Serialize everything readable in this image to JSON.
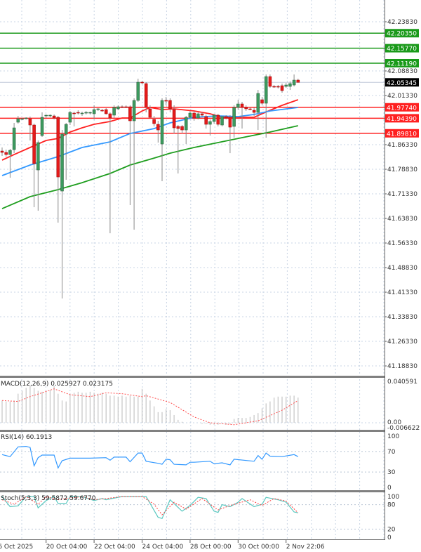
{
  "chart_data": {
    "type": "candlestick",
    "price_axis": {
      "ticks": [
        "42.23830",
        "42.08830",
        "42.01330",
        "41.86330",
        "41.78830",
        "41.71330",
        "41.63830",
        "41.56330",
        "41.48830",
        "41.41330",
        "41.33830",
        "41.26330",
        "41.18830"
      ],
      "range": [
        41.1683,
        42.3047
      ]
    },
    "time_axis": {
      "ticks": [
        "6 Oct 2025",
        "20 Oct 04:00",
        "22 Oct 04:00",
        "24 Oct 04:00",
        "28 Oct 00:00",
        "30 Oct 00:00",
        "2 Nov 22:06"
      ],
      "tick_bars": [
        -1,
        11,
        23,
        35,
        47,
        59,
        71
      ]
    },
    "grid": true,
    "colors": {
      "bull": "#3c9a5f",
      "bear": "#e41a1a",
      "wick": "#8a8a8a",
      "ma_fast": "#ff2222",
      "ma_mid": "#3399ff",
      "ma_slow": "#1f9e1f",
      "level_resistance": "#1a9a1a",
      "level_support": "#ff2020",
      "last_price": "#000000"
    },
    "candles": [
      [
        41.844,
        41.8547,
        41.829,
        41.8397
      ],
      [
        41.8397,
        41.8482,
        41.8268,
        41.8332
      ],
      [
        41.8332,
        41.8504,
        41.7625,
        41.8461
      ],
      [
        41.8482,
        41.9297,
        41.8375,
        41.9147
      ],
      [
        41.9318,
        41.9511,
        41.9275,
        41.9425
      ],
      [
        41.9404,
        41.9447,
        41.9383,
        41.9425
      ],
      [
        41.9425,
        41.9468,
        41.9404,
        41.9447
      ],
      [
        41.9425,
        41.949,
        41.8761,
        41.9233
      ],
      [
        41.9233,
        41.9275,
        41.6725,
        41.8054
      ],
      [
        41.7861,
        41.8761,
        41.6618,
        41.8697
      ],
      [
        41.8911,
        41.9618,
        41.8868,
        41.9468
      ],
      [
        41.9511,
        41.9554,
        41.9447,
        41.9533
      ],
      [
        41.9511,
        41.9554,
        41.9468,
        41.9533
      ],
      [
        41.9511,
        41.9554,
        41.9404,
        41.9447
      ],
      [
        41.9468,
        41.9511,
        41.6254,
        41.7647
      ],
      [
        41.7218,
        41.9082,
        41.394,
        41.8954
      ],
      [
        41.8954,
        41.9297,
        41.7561,
        41.9254
      ],
      [
        41.9318,
        41.9661,
        41.9233,
        41.9618
      ],
      [
        41.9597,
        41.964,
        41.919,
        41.9576
      ],
      [
        41.9618,
        41.9683,
        41.9554,
        41.9597
      ],
      [
        41.9576,
        41.964,
        41.9511,
        41.9597
      ],
      [
        41.9597,
        41.9661,
        41.9554,
        41.9618
      ],
      [
        41.9597,
        41.964,
        41.9554,
        41.9618
      ],
      [
        41.9576,
        41.9833,
        41.9404,
        41.9704
      ],
      [
        41.9704,
        41.9747,
        41.9661,
        41.9726
      ],
      [
        41.9683,
        41.9726,
        41.964,
        41.9661
      ],
      [
        41.9704,
        41.9747,
        41.9554,
        41.9576
      ],
      [
        41.9576,
        41.9618,
        41.5932,
        41.9447
      ],
      [
        41.9533,
        41.9833,
        41.9447,
        41.9768
      ],
      [
        41.9726,
        41.9833,
        41.9683,
        41.979
      ],
      [
        41.979,
        41.9833,
        41.9747,
        41.9768
      ],
      [
        41.979,
        41.9833,
        41.9747,
        41.9768
      ],
      [
        41.979,
        41.9833,
        41.679,
        41.9361
      ],
      [
        41.9361,
        42.0047,
        41.604,
        41.9983
      ],
      [
        41.9983,
        42.0647,
        41.994,
        42.054
      ],
      [
        42.054,
        42.0583,
        42.0475,
        42.0518
      ],
      [
        42.0497,
        42.054,
        41.9618,
        41.9768
      ],
      [
        41.9726,
        41.9833,
        41.9447,
        41.9468
      ],
      [
        41.9404,
        41.9511,
        41.919,
        41.9275
      ],
      [
        41.9254,
        41.9361,
        41.8697,
        41.9082
      ],
      [
        41.8654,
        42.0047,
        41.7518,
        41.9983
      ],
      [
        41.9983,
        42.009,
        41.9833,
        41.9961
      ],
      [
        41.9983,
        42.0047,
        41.9618,
        41.9726
      ],
      [
        41.9704,
        41.9833,
        41.8975,
        41.9147
      ],
      [
        41.919,
        41.9233,
        41.7754,
        41.9125
      ],
      [
        41.919,
        41.9233,
        41.8975,
        41.9082
      ],
      [
        41.9082,
        41.9511,
        41.8654,
        41.9468
      ],
      [
        41.9468,
        41.9661,
        41.9404,
        41.9597
      ],
      [
        41.9597,
        41.9661,
        41.9361,
        41.9447
      ],
      [
        41.9447,
        41.9618,
        41.9404,
        41.9576
      ],
      [
        41.9576,
        41.9618,
        41.949,
        41.9533
      ],
      [
        41.949,
        41.9554,
        41.9125,
        41.9254
      ],
      [
        41.9254,
        41.9404,
        41.8911,
        41.934
      ],
      [
        41.934,
        41.9576,
        41.9275,
        41.9533
      ],
      [
        41.9533,
        41.9576,
        41.919,
        41.9254
      ],
      [
        41.9233,
        41.9511,
        41.919,
        41.949
      ],
      [
        41.949,
        41.9533,
        41.9404,
        41.9447
      ],
      [
        41.9468,
        41.9533,
        41.8375,
        41.9168
      ],
      [
        41.919,
        41.9833,
        41.8847,
        41.9768
      ],
      [
        41.9768,
        42.0004,
        41.9704,
        41.9876
      ],
      [
        41.9876,
        41.994,
        41.9125,
        41.9768
      ],
      [
        41.9768,
        41.9833,
        41.9661,
        41.9726
      ],
      [
        41.9726,
        41.9768,
        41.9683,
        41.9704
      ],
      [
        41.9683,
        41.9768,
        41.9511,
        41.9618
      ],
      [
        41.9618,
        42.0304,
        41.9082,
        42.0197
      ],
      [
        42.0004,
        42.009,
        41.9833,
        41.9897
      ],
      [
        41.9897,
        42.0775,
        41.8847,
        42.0711
      ],
      [
        42.0711,
        42.0775,
        42.0368,
        42.0411
      ],
      [
        42.0411,
        42.0454,
        42.0368,
        42.039
      ],
      [
        42.0411,
        42.0454,
        42.0347,
        42.039
      ],
      [
        42.0433,
        42.0497,
        42.0218,
        42.0283
      ],
      [
        42.0411,
        42.0518,
        42.0368,
        42.0454
      ],
      [
        42.0411,
        42.0561,
        42.0304,
        42.0497
      ],
      [
        42.0454,
        42.0775,
        42.0411,
        42.0604
      ],
      [
        42.0604,
        42.0647,
        42.054,
        42.05345
      ]
    ],
    "moving_averages": [
      {
        "key": "ma_fast",
        "points": [
          [
            0,
            41.8161
          ],
          [
            3,
            41.8332
          ],
          [
            7,
            41.8547
          ],
          [
            11,
            41.8761
          ],
          [
            14,
            41.8825
          ],
          [
            17,
            41.9018
          ],
          [
            20,
            41.9147
          ],
          [
            23,
            41.9254
          ],
          [
            27,
            41.934
          ],
          [
            30,
            41.9447
          ],
          [
            32,
            41.9447
          ],
          [
            35,
            41.9661
          ],
          [
            37,
            41.9768
          ],
          [
            40,
            41.9704
          ],
          [
            43,
            41.9726
          ],
          [
            48,
            41.9661
          ],
          [
            52,
            41.9576
          ],
          [
            55,
            41.9468
          ],
          [
            60,
            41.9468
          ],
          [
            63,
            41.9468
          ],
          [
            67,
            41.9683
          ],
          [
            70,
            41.9833
          ],
          [
            74,
            42.0004
          ]
        ]
      },
      {
        "key": "ma_mid",
        "points": [
          [
            0,
            41.769
          ],
          [
            7,
            41.8011
          ],
          [
            14,
            41.8268
          ],
          [
            20,
            41.8547
          ],
          [
            27,
            41.8718
          ],
          [
            32,
            41.8975
          ],
          [
            38,
            41.9125
          ],
          [
            42,
            41.9297
          ],
          [
            48,
            41.9468
          ],
          [
            54,
            41.9511
          ],
          [
            59,
            41.949
          ],
          [
            63,
            41.9554
          ],
          [
            67,
            41.9661
          ],
          [
            74,
            41.9768
          ]
        ]
      },
      {
        "key": "ma_slow",
        "points": [
          [
            0,
            41.6682
          ],
          [
            7,
            41.7047
          ],
          [
            14,
            41.7261
          ],
          [
            20,
            41.7475
          ],
          [
            27,
            41.7754
          ],
          [
            32,
            41.8011
          ],
          [
            38,
            41.8225
          ],
          [
            42,
            41.8375
          ],
          [
            48,
            41.8547
          ],
          [
            54,
            41.8697
          ],
          [
            60,
            41.8847
          ],
          [
            67,
            41.9018
          ],
          [
            74,
            41.9211
          ]
        ]
      }
    ],
    "levels": [
      {
        "price": 42.2035,
        "label": "42.20350",
        "kind": "level_resistance"
      },
      {
        "price": 42.1577,
        "label": "42.15770",
        "kind": "level_resistance"
      },
      {
        "price": 42.1119,
        "label": "42.11190",
        "kind": "level_resistance"
      },
      {
        "price": 41.9774,
        "label": "41.97740",
        "kind": "level_support"
      },
      {
        "price": 41.9439,
        "label": "41.94390",
        "kind": "level_support"
      },
      {
        "price": 41.8981,
        "label": "41.89810",
        "kind": "level_support"
      }
    ],
    "last_price": {
      "price": 42.05345,
      "label": "42.05345"
    },
    "macd": {
      "title": "MACD(12,26,9) 0.025927 0.023175",
      "ticks": [
        "0.040591",
        "0.00",
        "-0.006622"
      ],
      "range": [
        -0.006622,
        0.040591
      ],
      "histogram": [
        0.023,
        0.022,
        0.022,
        0.023,
        0.03,
        0.033,
        0.036,
        0.038,
        0.036,
        0.033,
        0.032,
        0.033,
        0.034,
        0.038,
        0.03,
        0.023,
        0.022,
        0.03,
        0.031,
        0.032,
        0.031,
        0.031,
        0.032,
        0.031,
        0.03,
        0.031,
        0.03,
        0.028,
        0.028,
        0.027,
        0.028,
        0.027,
        0.028,
        0.027,
        0.027,
        0.035,
        0.03,
        0.023,
        0.017,
        0.011,
        0.011,
        0.014,
        0.013,
        0.008,
        0.003,
        0.001,
        0.0,
        0.0,
        0.0,
        0.0,
        -0.001,
        -0.001,
        -0.002,
        -0.002,
        -0.002,
        -0.001,
        -0.002,
        -0.001,
        0.004,
        0.005,
        0.005,
        0.005,
        0.006,
        0.008,
        0.01,
        0.015,
        0.02,
        0.022,
        0.026,
        0.027,
        0.027,
        0.027,
        0.028,
        0.028,
        0.026
      ],
      "signal": [
        [
          0,
          0.023
        ],
        [
          4,
          0.022
        ],
        [
          7,
          0.027
        ],
        [
          13,
          0.035
        ],
        [
          15,
          0.032
        ],
        [
          17,
          0.029
        ],
        [
          22,
          0.027
        ],
        [
          26,
          0.031
        ],
        [
          30,
          0.03
        ],
        [
          35,
          0.027
        ],
        [
          36,
          0.028
        ],
        [
          42,
          0.021
        ],
        [
          48,
          0.006
        ],
        [
          52,
          0.0
        ],
        [
          58,
          -0.002
        ],
        [
          64,
          0.002
        ],
        [
          70,
          0.013
        ],
        [
          74,
          0.023
        ]
      ]
    },
    "rsi": {
      "title": "RSI(14) 60.1913",
      "ticks": [
        "100",
        "70",
        "30",
        "0"
      ],
      "levels": [
        70,
        30
      ],
      "range": [
        0,
        100
      ],
      "values": [
        [
          0,
          64
        ],
        [
          2,
          60
        ],
        [
          4,
          79
        ],
        [
          6,
          80
        ],
        [
          7,
          78
        ],
        [
          8,
          42
        ],
        [
          9,
          58
        ],
        [
          10,
          63
        ],
        [
          13,
          63
        ],
        [
          14,
          38
        ],
        [
          15,
          52
        ],
        [
          17,
          57
        ],
        [
          22,
          57
        ],
        [
          26,
          58
        ],
        [
          27,
          53
        ],
        [
          28,
          59
        ],
        [
          31,
          59
        ],
        [
          32,
          50
        ],
        [
          34,
          67
        ],
        [
          35,
          67
        ],
        [
          36,
          51
        ],
        [
          39,
          47
        ],
        [
          40,
          45
        ],
        [
          41,
          55
        ],
        [
          42,
          54
        ],
        [
          43,
          45
        ],
        [
          46,
          44
        ],
        [
          47,
          49
        ],
        [
          48,
          49
        ],
        [
          52,
          51
        ],
        [
          53,
          46
        ],
        [
          55,
          48
        ],
        [
          57,
          44
        ],
        [
          58,
          55
        ],
        [
          63,
          51
        ],
        [
          64,
          62
        ],
        [
          65,
          55
        ],
        [
          66,
          67
        ],
        [
          67,
          61
        ],
        [
          70,
          60
        ],
        [
          73,
          64
        ],
        [
          74,
          60
        ]
      ]
    },
    "stochastic": {
      "title": "Stoch(5,3,3) 59.5872 59.6770",
      "ticks": [
        "100",
        "80",
        "20",
        "0"
      ],
      "levels": [
        80,
        20
      ],
      "range": [
        0,
        100
      ],
      "main": [
        [
          0,
          100
        ],
        [
          2,
          75
        ],
        [
          4,
          77
        ],
        [
          6,
          100
        ],
        [
          8,
          100
        ],
        [
          9,
          72
        ],
        [
          11,
          90
        ],
        [
          13,
          100
        ],
        [
          14,
          83
        ],
        [
          16,
          83
        ],
        [
          17,
          100
        ],
        [
          20,
          100
        ],
        [
          23,
          90
        ],
        [
          25,
          95
        ],
        [
          26,
          92
        ],
        [
          30,
          100
        ],
        [
          36,
          100
        ],
        [
          39,
          49
        ],
        [
          40,
          46
        ],
        [
          42,
          92
        ],
        [
          45,
          64
        ],
        [
          47,
          78
        ],
        [
          49,
          98
        ],
        [
          51,
          95
        ],
        [
          53,
          64
        ],
        [
          54,
          61
        ],
        [
          55,
          80
        ],
        [
          57,
          75
        ],
        [
          59,
          86
        ],
        [
          60,
          95
        ],
        [
          63,
          75
        ],
        [
          65,
          81
        ],
        [
          66,
          98
        ],
        [
          69,
          92
        ],
        [
          71,
          86
        ],
        [
          73,
          62
        ],
        [
          74,
          60
        ]
      ],
      "signal": [
        [
          0,
          92
        ],
        [
          3,
          81
        ],
        [
          6,
          100
        ],
        [
          9,
          81
        ],
        [
          11,
          100
        ],
        [
          14,
          92
        ],
        [
          16,
          95
        ],
        [
          20,
          100
        ],
        [
          23,
          92
        ],
        [
          26,
          95
        ],
        [
          30,
          100
        ],
        [
          35,
          100
        ],
        [
          38,
          81
        ],
        [
          40,
          55
        ],
        [
          43,
          86
        ],
        [
          46,
          69
        ],
        [
          50,
          95
        ],
        [
          54,
          67
        ],
        [
          57,
          78
        ],
        [
          62,
          92
        ],
        [
          65,
          78
        ],
        [
          68,
          95
        ],
        [
          71,
          89
        ],
        [
          74,
          60
        ]
      ],
      "main_color": "#5ac8c0",
      "signal_color": "#ff4040"
    }
  }
}
